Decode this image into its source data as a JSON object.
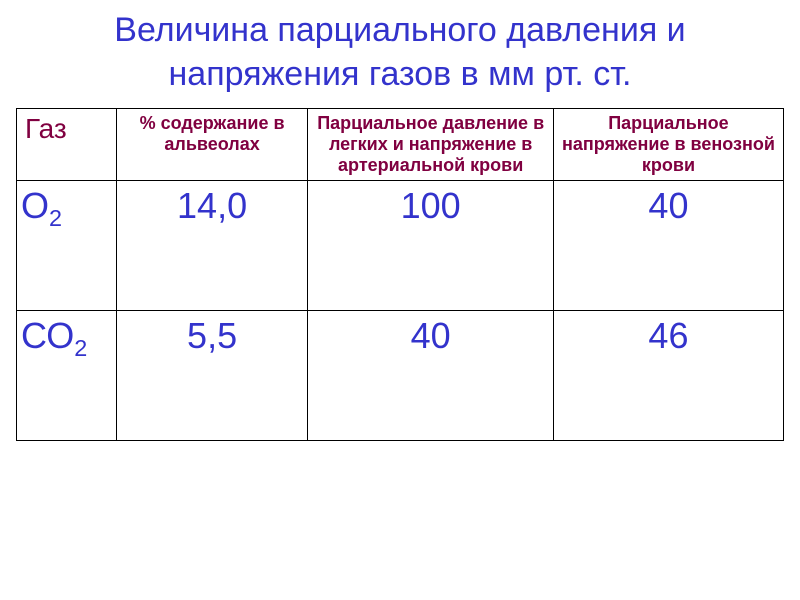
{
  "title": "Величина парциального давления и напряжения газов в мм рт. ст.",
  "columns": {
    "col1": "Газ",
    "col2": "% содержание в альвеолах",
    "col3": "Парциальное давление в легких и напряжение в артериальной крови",
    "col4": "Парциальное напряжение в венозной крови"
  },
  "rows": [
    {
      "gas_symbol": "О",
      "gas_subscript": "2",
      "alveoli": "14,0",
      "arterial": "100",
      "venous": "40"
    },
    {
      "gas_symbol": "СО",
      "gas_subscript": "2",
      "alveoli": "5,5",
      "arterial": "40",
      "venous": "46"
    }
  ],
  "colors": {
    "title": "#3333cc",
    "header_text": "#800040",
    "value_text": "#3333cc",
    "border": "#000000",
    "background": "#ffffff"
  },
  "fonts": {
    "title_size": 34,
    "header_size": 18,
    "gas_label_size": 36,
    "value_size": 36
  }
}
